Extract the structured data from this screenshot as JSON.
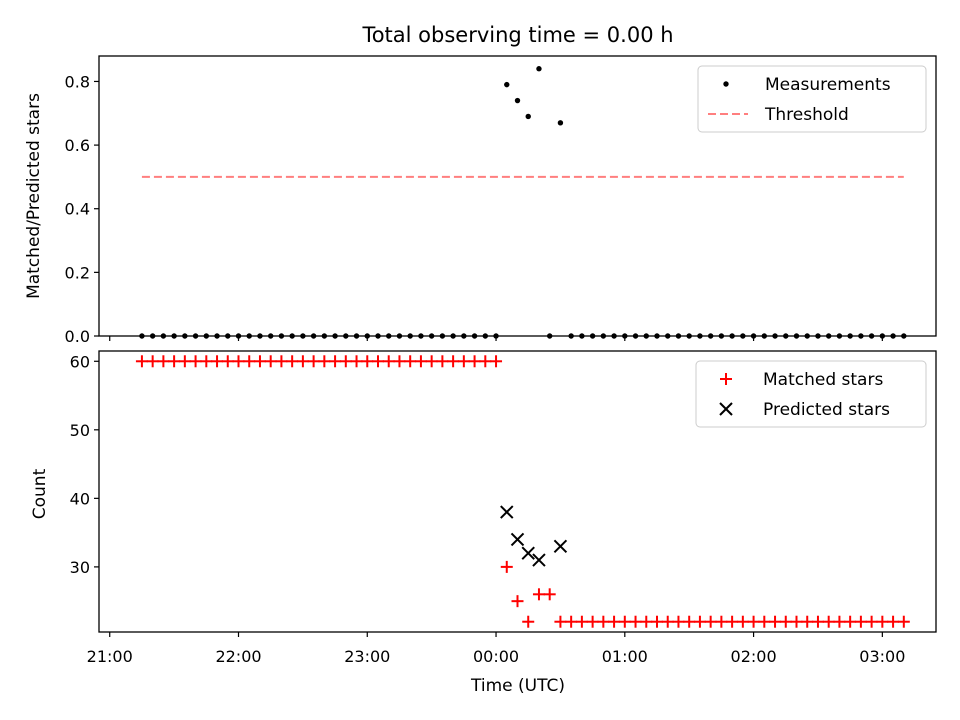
{
  "title": "Total observing time = 0.00 h",
  "chart_data": [
    {
      "type": "scatter",
      "panel": "top",
      "ylabel": "Matched/Predicted stars",
      "ylim": [
        0,
        0.88
      ],
      "yticks": [
        0.0,
        0.2,
        0.4,
        0.6,
        0.8
      ],
      "ytick_labels": [
        "0.0",
        "0.2",
        "0.4",
        "0.6",
        "0.8"
      ],
      "legend_position": "upper right",
      "series": [
        {
          "name": "Measurements",
          "kind": "scatter-dots",
          "color": "#000000",
          "x": [
            "21:15",
            "21:20",
            "21:25",
            "21:30",
            "21:35",
            "21:40",
            "21:45",
            "21:50",
            "21:55",
            "22:00",
            "22:05",
            "22:10",
            "22:15",
            "22:20",
            "22:25",
            "22:30",
            "22:35",
            "22:40",
            "22:45",
            "22:50",
            "22:55",
            "23:00",
            "23:05",
            "23:10",
            "23:15",
            "23:20",
            "23:25",
            "23:30",
            "23:35",
            "23:40",
            "23:45",
            "23:50",
            "23:55",
            "00:00",
            "00:05",
            "00:10",
            "00:15",
            "00:20",
            "00:25",
            "00:30",
            "00:35",
            "00:40",
            "00:45",
            "00:50",
            "00:55",
            "01:00",
            "01:05",
            "01:10",
            "01:15",
            "01:20",
            "01:25",
            "01:30",
            "01:35",
            "01:40",
            "01:45",
            "01:50",
            "01:55",
            "02:00",
            "02:05",
            "02:10",
            "02:15",
            "02:20",
            "02:25",
            "02:30",
            "02:35",
            "02:40",
            "02:45",
            "02:50",
            "02:55",
            "03:00",
            "03:05",
            "03:10"
          ],
          "y": [
            0,
            0,
            0,
            0,
            0,
            0,
            0,
            0,
            0,
            0,
            0,
            0,
            0,
            0,
            0,
            0,
            0,
            0,
            0,
            0,
            0,
            0,
            0,
            0,
            0,
            0,
            0,
            0,
            0,
            0,
            0,
            0,
            0,
            0,
            0.79,
            0.74,
            0.69,
            0.84,
            0,
            0.67,
            0,
            0,
            0,
            0,
            0,
            0,
            0,
            0,
            0,
            0,
            0,
            0,
            0,
            0,
            0,
            0,
            0,
            0,
            0,
            0,
            0,
            0,
            0,
            0,
            0,
            0,
            0,
            0,
            0,
            0,
            0,
            0
          ]
        },
        {
          "name": "Threshold",
          "kind": "dashed-line",
          "color": "#ff7f7f",
          "x": [
            "21:15",
            "03:10"
          ],
          "y": [
            0.5,
            0.5
          ]
        }
      ]
    },
    {
      "type": "scatter",
      "panel": "bottom",
      "xlabel": "Time (UTC)",
      "ylabel": "Count",
      "ylim": [
        20.5,
        61.5
      ],
      "yticks": [
        30,
        40,
        50,
        60
      ],
      "ytick_labels": [
        "30",
        "40",
        "50",
        "60"
      ],
      "xlim": [
        "20:55",
        "03:25"
      ],
      "xticks": [
        "21:00",
        "22:00",
        "23:00",
        "00:00",
        "01:00",
        "02:00",
        "03:00"
      ],
      "xtick_labels": [
        "21:00",
        "22:00",
        "23:00",
        "00:00",
        "01:00",
        "02:00",
        "03:00"
      ],
      "legend_position": "upper right",
      "series": [
        {
          "name": "Matched stars",
          "kind": "plus",
          "color": "#ff0000",
          "x": [
            "21:15",
            "21:20",
            "21:25",
            "21:30",
            "21:35",
            "21:40",
            "21:45",
            "21:50",
            "21:55",
            "22:00",
            "22:05",
            "22:10",
            "22:15",
            "22:20",
            "22:25",
            "22:30",
            "22:35",
            "22:40",
            "22:45",
            "22:50",
            "22:55",
            "23:00",
            "23:05",
            "23:10",
            "23:15",
            "23:20",
            "23:25",
            "23:30",
            "23:35",
            "23:40",
            "23:45",
            "23:50",
            "23:55",
            "00:00",
            "00:05",
            "00:10",
            "00:15",
            "00:20",
            "00:25",
            "00:30",
            "00:35",
            "00:40",
            "00:45",
            "00:50",
            "00:55",
            "01:00",
            "01:05",
            "01:10",
            "01:15",
            "01:20",
            "01:25",
            "01:30",
            "01:35",
            "01:40",
            "01:45",
            "01:50",
            "01:55",
            "02:00",
            "02:05",
            "02:10",
            "02:15",
            "02:20",
            "02:25",
            "02:30",
            "02:35",
            "02:40",
            "02:45",
            "02:50",
            "02:55",
            "03:00",
            "03:05",
            "03:10"
          ],
          "y": [
            60,
            60,
            60,
            60,
            60,
            60,
            60,
            60,
            60,
            60,
            60,
            60,
            60,
            60,
            60,
            60,
            60,
            60,
            60,
            60,
            60,
            60,
            60,
            60,
            60,
            60,
            60,
            60,
            60,
            60,
            60,
            60,
            60,
            60,
            30,
            25,
            22,
            26,
            26,
            22,
            22,
            22,
            22,
            22,
            22,
            22,
            22,
            22,
            22,
            22,
            22,
            22,
            22,
            22,
            22,
            22,
            22,
            22,
            22,
            22,
            22,
            22,
            22,
            22,
            22,
            22,
            22,
            22,
            22,
            22,
            22,
            22
          ]
        },
        {
          "name": "Predicted stars",
          "kind": "x",
          "color": "#000000",
          "x": [
            "00:05",
            "00:10",
            "00:15",
            "00:20",
            "00:30"
          ],
          "y": [
            38,
            34,
            32,
            31,
            33
          ]
        }
      ]
    }
  ]
}
